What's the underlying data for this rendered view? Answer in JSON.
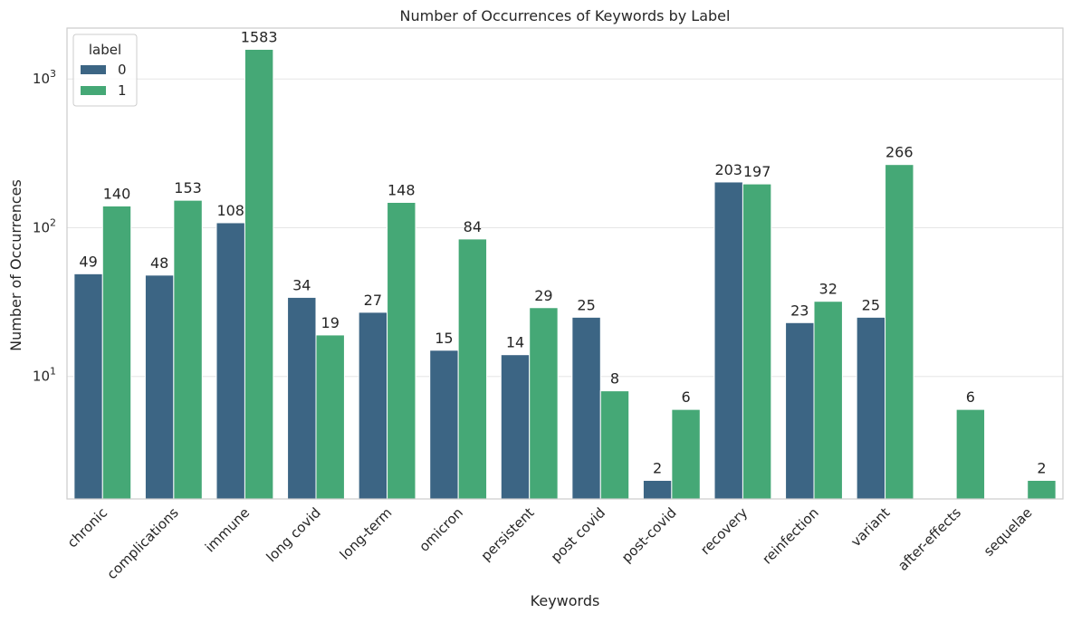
{
  "chart_data": {
    "type": "bar",
    "title": "Number of Occurrences of Keywords by Label",
    "xlabel": "Keywords",
    "ylabel": "Number of Occurrences",
    "yscale": "log",
    "ylim": [
      1.5,
      2200
    ],
    "yticks": [
      {
        "value": 10,
        "base": "10",
        "exp": "1"
      },
      {
        "value": 100,
        "base": "10",
        "exp": "2"
      },
      {
        "value": 1000,
        "base": "10",
        "exp": "3"
      }
    ],
    "grid": true,
    "legend": {
      "title": "label",
      "placement": "top-left"
    },
    "categories": [
      "chronic",
      "complications",
      "immune",
      "long covid",
      "long-term",
      "omicron",
      "persistent",
      "post covid",
      "post-covid",
      "recovery",
      "reinfection",
      "variant",
      "after-effects",
      "sequelae"
    ],
    "series": [
      {
        "name": "0",
        "color": "#3c6584",
        "values": [
          49,
          48,
          108,
          34,
          27,
          15,
          14,
          25,
          2,
          203,
          23,
          25,
          null,
          null
        ]
      },
      {
        "name": "1",
        "color": "#45a876",
        "values": [
          140,
          153,
          1583,
          19,
          148,
          84,
          29,
          8,
          6,
          197,
          32,
          266,
          6,
          2
        ]
      }
    ]
  }
}
